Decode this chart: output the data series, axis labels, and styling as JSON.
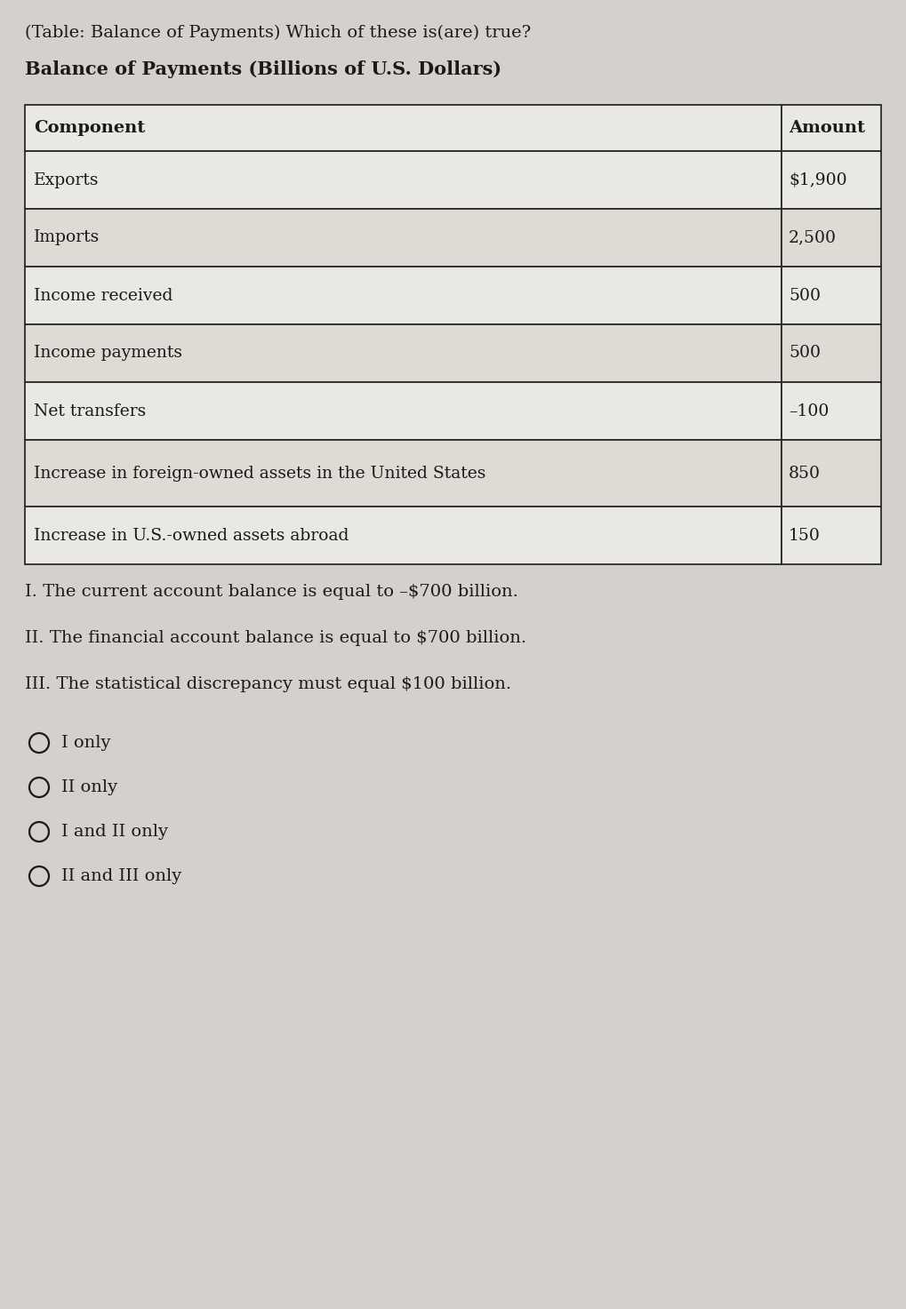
{
  "title_line1": "(Table: Balance of Payments) Which of these is(are) true?",
  "title_line2": "Balance of Payments (Billions of U.S. Dollars)",
  "table_headers": [
    "Component",
    "Amount"
  ],
  "table_rows": [
    [
      "Exports",
      "$1,900"
    ],
    [
      "Imports",
      "2,500"
    ],
    [
      "Income received",
      "500"
    ],
    [
      "Income payments",
      "500"
    ],
    [
      "Net transfers",
      "–100"
    ],
    [
      "Increase in foreign-owned assets in the United States",
      "850"
    ],
    [
      "Increase in U.S.-owned assets abroad",
      "150"
    ]
  ],
  "statements": [
    "I. The current account balance is equal to –$700 billion.",
    "II. The financial account balance is equal to $700 billion.",
    "III. The statistical discrepancy must equal $100 billion."
  ],
  "choices": [
    "I only",
    "II only",
    "I and II only",
    "II and III only"
  ],
  "bg_color": "#d4d0cb",
  "text_color": "#1a1a1a",
  "border_color": "#2a2a2a",
  "row_colors": [
    "#eae8e3",
    "#dedad4"
  ],
  "header_color": "#eae8e3",
  "fig_width": 10.19,
  "fig_height": 14.73,
  "dpi": 100
}
